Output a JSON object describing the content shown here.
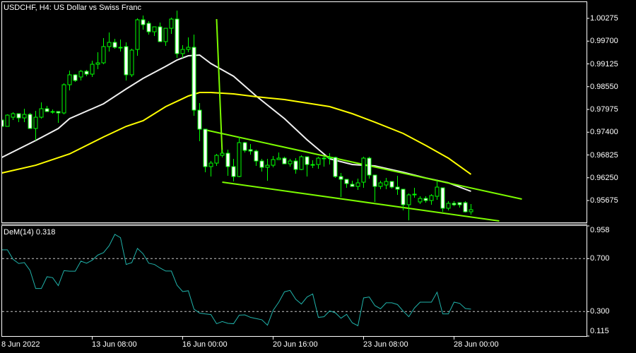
{
  "header": {
    "title": "USDCHF, H4:  US Dollar vs Swiss Franc"
  },
  "indicator_panel": {
    "label": "DeM(14) 0.318"
  },
  "colors": {
    "background": "#000000",
    "candle_outline": "#00ff00",
    "bull_body": "#000000",
    "bear_body": "#ffffff",
    "ma_fast": "#f0f0f0",
    "ma_slow": "#ffff00",
    "trendline": "#7cfc00",
    "dem_line": "#20b2aa",
    "grid_levels": "#c8c8c8"
  },
  "price_axis": {
    "ticks": [
      "1.00275",
      "0.99700",
      "0.99125",
      "0.98550",
      "0.97975",
      "0.97400",
      "0.96825",
      "0.96250",
      "0.95675"
    ]
  },
  "dem_axis": {
    "ticks": [
      "0.958",
      "0.700",
      "0.300",
      "0.115"
    ]
  },
  "time_axis": {
    "labels": [
      "8 Jun 2022",
      "13 Jun 08:00",
      "16 Jun 00:00",
      "20 Jun 16:00",
      "23 Jun 08:00",
      "28 Jun 00:00"
    ]
  },
  "chart_data": [
    {
      "type": "candlestick",
      "title": "USDCHF, H4:  US Dollar vs Swiss Franc",
      "ylim": [
        0.9515,
        1.0048
      ],
      "grid": false,
      "ohlc_fields": [
        "open",
        "high",
        "low",
        "close"
      ],
      "candles": [
        [
          0.97708,
          0.97708,
          0.97547,
          0.97547
        ],
        [
          0.97547,
          0.9785,
          0.97547,
          0.97832
        ],
        [
          0.97779,
          0.97904,
          0.97708,
          0.97868
        ],
        [
          0.97868,
          0.97868,
          0.97654,
          0.97761
        ],
        [
          0.97761,
          0.97993,
          0.97654,
          0.9785
        ],
        [
          0.9785,
          0.97886,
          0.97494,
          0.97494
        ],
        [
          0.97494,
          0.97939,
          0.9719,
          0.97779
        ],
        [
          0.97779,
          0.98153,
          0.97743,
          0.97993
        ],
        [
          0.97993,
          0.98064,
          0.97922,
          0.97922
        ],
        [
          0.97922,
          0.97975,
          0.97868,
          0.97922
        ],
        [
          0.97922,
          0.97922,
          0.97636,
          0.97886
        ],
        [
          0.97886,
          0.98635,
          0.9785,
          0.98599
        ],
        [
          0.98599,
          0.98956,
          0.98456,
          0.98849
        ],
        [
          0.98849,
          0.98866,
          0.9867,
          0.98706
        ],
        [
          0.98795,
          0.98973,
          0.98706,
          0.98938
        ],
        [
          0.98938,
          0.98973,
          0.98813,
          0.98866
        ],
        [
          0.98866,
          0.99205,
          0.98795,
          0.99116
        ],
        [
          0.99116,
          0.99419,
          0.98991,
          0.99152
        ],
        [
          0.99152,
          0.99776,
          0.99116,
          0.99562
        ],
        [
          0.99562,
          0.99918,
          0.99437,
          0.99669
        ],
        [
          0.99669,
          0.99758,
          0.99508,
          0.99544
        ],
        [
          0.99544,
          0.9974,
          0.99437,
          0.99544
        ],
        [
          0.99562,
          0.99669,
          0.98706,
          0.98849
        ],
        [
          0.98849,
          0.99508,
          0.98795,
          0.99473
        ],
        [
          0.9949,
          1.00275,
          0.9933,
          1.00239
        ],
        [
          1.00239,
          1.00346,
          0.9999,
          1.00115
        ],
        [
          1.0015,
          1.00204,
          0.99865,
          0.99936
        ],
        [
          0.99936,
          1.00061,
          0.99829,
          1.00061
        ],
        [
          1.00061,
          1.00168,
          0.99687,
          0.99687
        ],
        [
          0.99687,
          1.00025,
          0.9958,
          1.00025
        ],
        [
          1.00025,
          1.00293,
          0.99883,
          1.00257
        ],
        [
          1.00257,
          1.00471,
          0.99277,
          0.99384
        ],
        [
          0.99384,
          0.99597,
          0.99277,
          0.9949
        ],
        [
          0.9949,
          0.99794,
          0.99419,
          0.99544
        ],
        [
          0.99544,
          0.99865,
          0.97815,
          0.97957
        ],
        [
          0.97957,
          0.98135,
          0.97173,
          0.97476
        ],
        [
          0.97476,
          0.97476,
          0.96388,
          0.96531
        ],
        [
          0.96531,
          0.96673,
          0.96281,
          0.9662
        ],
        [
          0.9662,
          0.96852,
          0.96548,
          0.96816
        ],
        [
          0.96816,
          0.96959,
          0.96763,
          0.96869
        ],
        [
          0.96869,
          0.96959,
          0.96299,
          0.96531
        ],
        [
          0.96531,
          0.96727,
          0.96156,
          0.96281
        ],
        [
          0.96281,
          0.9728,
          0.96263,
          0.97137
        ],
        [
          0.97137,
          0.97155,
          0.96887,
          0.96941
        ],
        [
          0.96959,
          0.97101,
          0.96834,
          0.96923
        ],
        [
          0.96923,
          0.96959,
          0.96548,
          0.96673
        ],
        [
          0.96673,
          0.96727,
          0.96406,
          0.96513
        ],
        [
          0.96513,
          0.96727,
          0.96174,
          0.96566
        ],
        [
          0.96566,
          0.96798,
          0.96513,
          0.96709
        ],
        [
          0.96709,
          0.96887,
          0.96709,
          0.96745
        ],
        [
          0.96745,
          0.9678,
          0.96602,
          0.96602
        ],
        [
          0.96602,
          0.96727,
          0.96531,
          0.96673
        ],
        [
          0.96673,
          0.96745,
          0.96352,
          0.96459
        ],
        [
          0.96459,
          0.96816,
          0.96441,
          0.9678
        ],
        [
          0.9678,
          0.9678,
          0.96281,
          0.96584
        ],
        [
          0.96584,
          0.96691,
          0.96495,
          0.96584
        ],
        [
          0.96584,
          0.9678,
          0.96477,
          0.96745
        ],
        [
          0.96745,
          0.96798,
          0.96531,
          0.96745
        ],
        [
          0.96745,
          0.96869,
          0.96584,
          0.96763
        ],
        [
          0.96763,
          0.9678,
          0.96245,
          0.96281
        ],
        [
          0.96281,
          0.9637,
          0.95764,
          0.9621
        ],
        [
          0.9621,
          0.9621,
          0.95996,
          0.96103
        ],
        [
          0.96085,
          0.96174,
          0.96031,
          0.96031
        ],
        [
          0.96031,
          0.96228,
          0.95942,
          0.96121
        ],
        [
          0.96138,
          0.9678,
          0.95996,
          0.96745
        ],
        [
          0.96745,
          0.9678,
          0.96228,
          0.96317
        ],
        [
          0.96317,
          0.96317,
          0.95639,
          0.96031
        ],
        [
          0.96031,
          0.96174,
          0.9596,
          0.96121
        ],
        [
          0.96067,
          0.96245,
          0.9596,
          0.96156
        ],
        [
          0.96156,
          0.96156,
          0.95978,
          0.96014
        ],
        [
          0.96014,
          0.96299,
          0.95818,
          0.9596
        ],
        [
          0.9596,
          0.9596,
          0.95425,
          0.95568
        ],
        [
          0.95568,
          0.95853,
          0.95176,
          0.95818
        ],
        [
          0.95835,
          0.95996,
          0.95746,
          0.95835
        ],
        [
          0.95639,
          0.95782,
          0.95586,
          0.95728
        ],
        [
          0.95728,
          0.95782,
          0.95621,
          0.95675
        ],
        [
          0.95675,
          0.95835,
          0.95568,
          0.958
        ],
        [
          0.95782,
          0.96174,
          0.95693,
          0.96014
        ],
        [
          0.95996,
          0.95996,
          0.9539,
          0.95479
        ],
        [
          0.95479,
          0.95657,
          0.95425,
          0.95604
        ],
        [
          0.95604,
          0.95657,
          0.95532,
          0.95568
        ],
        [
          0.95621,
          0.95621,
          0.95497,
          0.95568
        ],
        [
          0.95621,
          0.95657,
          0.95372,
          0.9539
        ],
        [
          0.9539,
          0.95586,
          0.95318,
          0.95443
        ]
      ],
      "overlays": [
        {
          "type": "line",
          "color": "#f0f0f0",
          "points": [
            [
              0,
              0.96763
            ],
            [
              6,
              0.9719
            ],
            [
              10,
              0.97494
            ],
            [
              12,
              0.97743
            ],
            [
              18,
              0.98118
            ],
            [
              22,
              0.98492
            ],
            [
              25,
              0.9876
            ],
            [
              29,
              0.99063
            ],
            [
              31,
              0.99223
            ],
            [
              33,
              0.9933
            ],
            [
              35,
              0.99348
            ],
            [
              37,
              0.99134
            ],
            [
              41,
              0.98813
            ],
            [
              45,
              0.98314
            ],
            [
              50,
              0.97743
            ],
            [
              54,
              0.97208
            ],
            [
              58,
              0.96727
            ],
            [
              62,
              0.96584
            ],
            [
              66,
              0.96548
            ],
            [
              71,
              0.96388
            ],
            [
              75,
              0.96245
            ],
            [
              79,
              0.96121
            ],
            [
              83,
              0.95907
            ]
          ]
        },
        {
          "type": "line",
          "color": "#ffff00",
          "points": [
            [
              0,
              0.9637
            ],
            [
              6,
              0.96566
            ],
            [
              12,
              0.96852
            ],
            [
              18,
              0.9728
            ],
            [
              22,
              0.97547
            ],
            [
              25,
              0.9769
            ],
            [
              29,
              0.98046
            ],
            [
              33,
              0.98314
            ],
            [
              35,
              0.98403
            ],
            [
              37,
              0.98403
            ],
            [
              41,
              0.98367
            ],
            [
              45,
              0.98296
            ],
            [
              50,
              0.98225
            ],
            [
              54,
              0.98135
            ],
            [
              58,
              0.98046
            ],
            [
              62,
              0.97868
            ],
            [
              66,
              0.97654
            ],
            [
              71,
              0.97369
            ],
            [
              75,
              0.97066
            ],
            [
              79,
              0.96745
            ],
            [
              83,
              0.96335
            ]
          ]
        }
      ],
      "trendlines": [
        {
          "from": [
            36,
            0.97458
          ],
          "to": [
            92,
            0.95711
          ]
        },
        {
          "from": [
            39,
            0.96138
          ],
          "to": [
            88,
            0.95158
          ]
        },
        {
          "from": [
            38,
            1.00257
          ],
          "to": [
            39,
            0.96852
          ]
        }
      ]
    },
    {
      "type": "line",
      "title": "DeM(14) 0.318",
      "ylim": [
        0.115,
        0.958
      ],
      "levels": [
        0.7,
        0.3
      ],
      "values": [
        0.766,
        0.766,
        0.695,
        0.663,
        0.67,
        0.611,
        0.474,
        0.474,
        0.563,
        0.556,
        0.496,
        0.609,
        0.605,
        0.605,
        0.681,
        0.665,
        0.688,
        0.727,
        0.745,
        0.798,
        0.883,
        0.858,
        0.656,
        0.67,
        0.777,
        0.736,
        0.665,
        0.656,
        0.629,
        0.606,
        0.606,
        0.499,
        0.451,
        0.457,
        0.318,
        0.288,
        0.282,
        0.277,
        0.208,
        0.225,
        0.211,
        0.208,
        0.273,
        0.275,
        0.256,
        0.247,
        0.238,
        0.197,
        0.309,
        0.371,
        0.449,
        0.46,
        0.393,
        0.357,
        0.41,
        0.433,
        0.256,
        0.261,
        0.305,
        0.291,
        0.25,
        0.279,
        0.215,
        0.193,
        0.403,
        0.41,
        0.345,
        0.321,
        0.366,
        0.366,
        0.353,
        0.304,
        0.261,
        0.327,
        0.371,
        0.371,
        0.371,
        0.446,
        0.282,
        0.282,
        0.371,
        0.362,
        0.323,
        0.318
      ]
    }
  ]
}
